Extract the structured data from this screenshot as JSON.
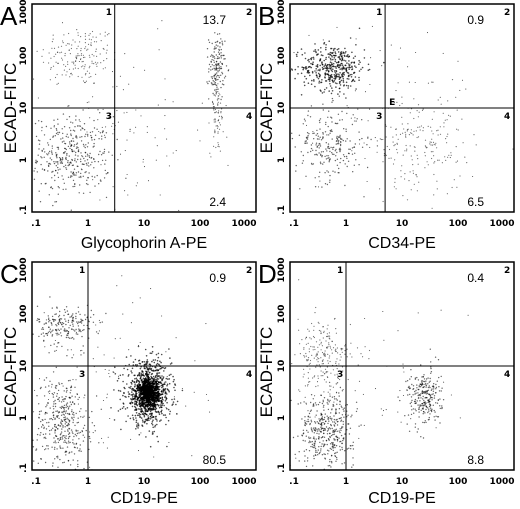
{
  "chart_data": [
    {
      "type": "scatter",
      "panel": "A",
      "xlabel": "Glycophorin A-PE",
      "ylabel": "ECAD-FITC",
      "scale": "log",
      "xlim": [
        0.1,
        1000
      ],
      "ylim": [
        0.1,
        1000
      ],
      "x_ticks": [
        ".1",
        "1",
        "10",
        "100",
        "1000"
      ],
      "y_ticks": [
        ".1",
        "1",
        "10",
        "100",
        "1000"
      ],
      "quadrant_gate": {
        "x": 3,
        "y": 10
      },
      "quadrant_numbers": [
        "1",
        "2",
        "3",
        "4"
      ],
      "quadrant_percentages": {
        "upper_right": "13.7",
        "lower_right": "2.4"
      },
      "populations": [
        {
          "x": 0.7,
          "y": 100,
          "sx": 0.35,
          "sy": 0.3,
          "n": 170,
          "density": "low"
        },
        {
          "x": 0.5,
          "y": 1.2,
          "sx": 0.35,
          "sy": 0.38,
          "n": 380,
          "density": "medium"
        },
        {
          "x": 200,
          "y": 60,
          "sx": 0.07,
          "sy": 0.32,
          "n": 150,
          "density": "medium"
        },
        {
          "x": 200,
          "y": 8,
          "sx": 0.06,
          "sy": 0.4,
          "n": 70,
          "density": "low"
        },
        {
          "x": 3,
          "y": 3,
          "sx": 0.9,
          "sy": 0.9,
          "n": 110,
          "density": "sparse"
        }
      ]
    },
    {
      "type": "scatter",
      "panel": "B",
      "xlabel": "CD34-PE",
      "ylabel": "ECAD-FITC",
      "scale": "log",
      "xlim": [
        0.1,
        1000
      ],
      "ylim": [
        0.1,
        1000
      ],
      "x_ticks": [
        ".1",
        "1",
        "10",
        "100",
        "1000"
      ],
      "y_ticks": [
        ".1",
        "1",
        "10",
        "100",
        "1000"
      ],
      "quadrant_gate": {
        "x": 5,
        "y": 10
      },
      "quadrant_numbers": [
        "1",
        "2",
        "3",
        "4"
      ],
      "quadrant_percentages": {
        "upper_right": "0.9",
        "lower_right": "6.5"
      },
      "annotation": "E",
      "populations": [
        {
          "x": 0.6,
          "y": 60,
          "sx": 0.28,
          "sy": 0.22,
          "n": 420,
          "density": "high"
        },
        {
          "x": 0.5,
          "y": 2,
          "sx": 0.3,
          "sy": 0.35,
          "n": 240,
          "density": "medium"
        },
        {
          "x": 20,
          "y": 2,
          "sx": 0.4,
          "sy": 0.5,
          "n": 180,
          "density": "low"
        },
        {
          "x": 5,
          "y": 10,
          "sx": 0.9,
          "sy": 0.9,
          "n": 90,
          "density": "sparse"
        }
      ]
    },
    {
      "type": "scatter",
      "panel": "C",
      "xlabel": "CD19-PE",
      "ylabel": "ECAD-FITC",
      "scale": "log",
      "xlim": [
        0.1,
        1000
      ],
      "ylim": [
        0.1,
        1000
      ],
      "x_ticks": [
        ".1",
        "1",
        "10",
        "100",
        "1000"
      ],
      "y_ticks": [
        ".1",
        "1",
        "10",
        "100",
        "1000"
      ],
      "quadrant_gate": {
        "x": 1,
        "y": 10
      },
      "quadrant_numbers": [
        "1",
        "2",
        "3",
        "4"
      ],
      "quadrant_percentages": {
        "upper_right": "0.9",
        "lower_right": "80.5"
      },
      "populations": [
        {
          "x": 0.4,
          "y": 60,
          "sx": 0.25,
          "sy": 0.2,
          "n": 200,
          "density": "medium"
        },
        {
          "x": 0.35,
          "y": 0.8,
          "sx": 0.25,
          "sy": 0.45,
          "n": 380,
          "density": "medium"
        },
        {
          "x": 12,
          "y": 3,
          "sx": 0.2,
          "sy": 0.3,
          "n": 900,
          "density": "high"
        },
        {
          "x": 12,
          "y": 3,
          "sx": 0.09,
          "sy": 0.13,
          "n": 500,
          "density": "core"
        },
        {
          "x": 2,
          "y": 4,
          "sx": 0.9,
          "sy": 0.9,
          "n": 120,
          "density": "sparse"
        }
      ]
    },
    {
      "type": "scatter",
      "panel": "D",
      "xlabel": "CD19-PE",
      "ylabel": "ECAD-FITC",
      "scale": "log",
      "xlim": [
        0.1,
        1000
      ],
      "ylim": [
        0.1,
        1000
      ],
      "x_ticks": [
        ".1",
        "1",
        "10",
        "100",
        "1000"
      ],
      "y_ticks": [
        ".1",
        "1",
        "10",
        "100",
        "1000"
      ],
      "quadrant_gate": {
        "x": 1,
        "y": 10
      },
      "quadrant_numbers": [
        "1",
        "2",
        "3",
        "4"
      ],
      "quadrant_percentages": {
        "upper_right": "0.4",
        "lower_right": "8.8"
      },
      "populations": [
        {
          "x": 0.4,
          "y": 15,
          "sx": 0.25,
          "sy": 0.35,
          "n": 220,
          "density": "low"
        },
        {
          "x": 0.45,
          "y": 0.6,
          "sx": 0.25,
          "sy": 0.35,
          "n": 420,
          "density": "medium"
        },
        {
          "x": 25,
          "y": 2.5,
          "sx": 0.15,
          "sy": 0.28,
          "n": 260,
          "density": "medium"
        },
        {
          "x": 3,
          "y": 5,
          "sx": 0.9,
          "sy": 0.9,
          "n": 60,
          "density": "sparse"
        }
      ]
    }
  ]
}
